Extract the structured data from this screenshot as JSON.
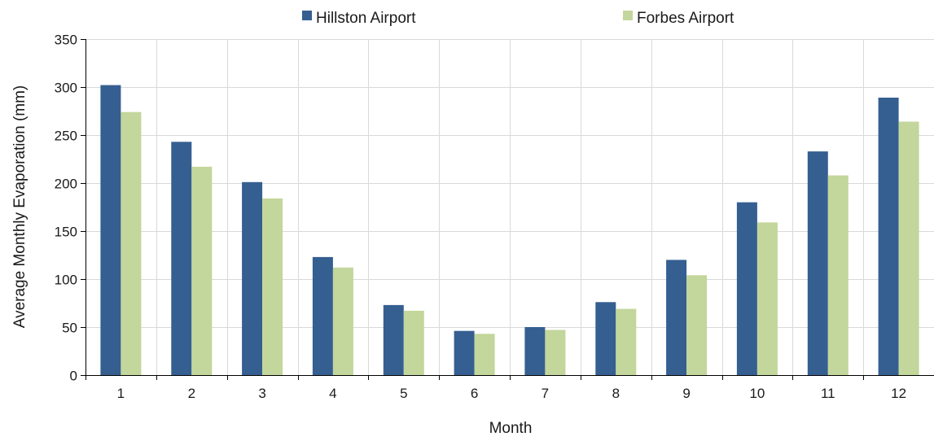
{
  "chart_data": {
    "type": "bar",
    "title": "",
    "xlabel": "Month",
    "ylabel": "Average Monthly  Evaporation (mm)",
    "ylim": [
      0,
      350
    ],
    "yticks": [
      0,
      50,
      100,
      150,
      200,
      250,
      300,
      350
    ],
    "categories": [
      "1",
      "2",
      "3",
      "4",
      "5",
      "6",
      "7",
      "8",
      "9",
      "10",
      "11",
      "12"
    ],
    "grid": true,
    "legend_position": "top",
    "series": [
      {
        "name": "Hillston Airport",
        "color": "#355f91",
        "values": [
          302,
          243,
          201,
          123,
          73,
          46,
          50,
          76,
          120,
          180,
          233,
          289
        ]
      },
      {
        "name": "Forbes Airport",
        "color": "#c3d69b",
        "values": [
          274,
          217,
          184,
          112,
          67,
          43,
          47,
          69,
          104,
          159,
          208,
          264
        ]
      }
    ]
  }
}
